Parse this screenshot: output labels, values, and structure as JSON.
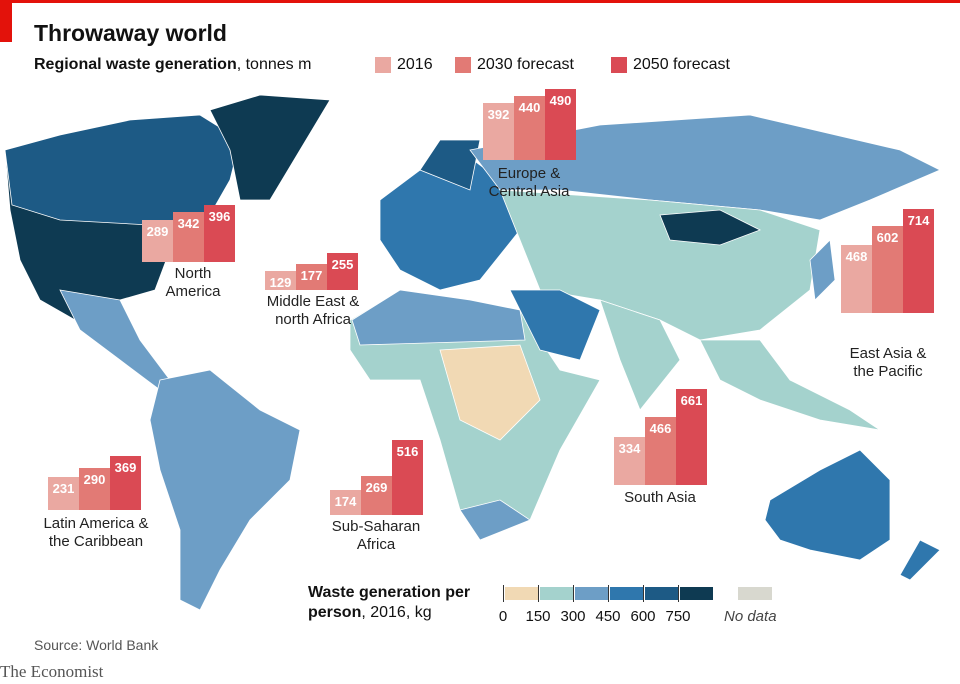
{
  "chart_data": {
    "type": "bar",
    "title": "Throwaway world",
    "subtitle_bold": "Regional waste generation",
    "subtitle": ", tonnes m",
    "categories": [
      "Latin America & the Caribbean",
      "North America",
      "Middle East & north Africa",
      "Sub-Saharan Africa",
      "Europe & Central Asia",
      "South Asia",
      "East Asia & the Pacific"
    ],
    "series": [
      {
        "name": "2016",
        "color": "#eaa8a1",
        "values": [
          231,
          289,
          129,
          174,
          392,
          334,
          468
        ]
      },
      {
        "name": "2030 forecast",
        "color": "#e27a75",
        "values": [
          290,
          342,
          177,
          269,
          440,
          466,
          602
        ]
      },
      {
        "name": "2050 forecast",
        "color": "#da4a54",
        "values": [
          369,
          396,
          255,
          516,
          490,
          661,
          714
        ]
      }
    ],
    "color_scale": {
      "title_bold": "Waste generation per person",
      "title": ", 2016, kg",
      "ticks": [
        0,
        150,
        300,
        450,
        600,
        750
      ],
      "colors": [
        "#f1d9b4",
        "#a4d2cd",
        "#6d9ec6",
        "#2f77ad",
        "#1d5a85",
        "#0e3a52"
      ],
      "no_data_label": "No data",
      "no_data_color": "#d8d8cf"
    },
    "source": "Source: World Bank",
    "brand": "The Economist"
  }
}
